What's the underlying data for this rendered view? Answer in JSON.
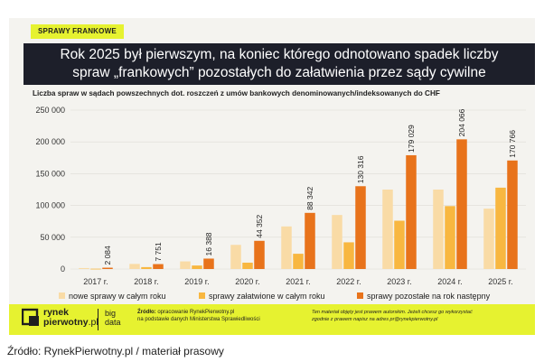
{
  "tag": "SPRAWY FRANKOWE",
  "headline": {
    "line1": "Rok 2025 był pierwszym, na koniec którego odnotowano spadek liczby",
    "line2": "spraw „frankowych” pozostałych do załatwienia przez sądy cywilne"
  },
  "colors": {
    "new": "#f9dba6",
    "done": "#f8b740",
    "remaining": "#e8731b",
    "accent": "#e6f230",
    "dark": "#1d1f2a"
  },
  "chart_data": {
    "type": "bar",
    "title": "Liczba spraw w sądach powszechnych dot. roszczeń z umów bankowych denominowanych/indeksowanych do CHF",
    "categories": [
      "2017 r.",
      "2018 r.",
      "2019 r.",
      "2020 r.",
      "2021 r.",
      "2022 r.",
      "2023 r.",
      "2024 r.",
      "2025 r."
    ],
    "ylim": [
      0,
      250000
    ],
    "yticks": [
      "0",
      "50 000",
      "100 000",
      "150 000",
      "200 000",
      "250 000"
    ],
    "ytick_values": [
      0,
      50000,
      100000,
      150000,
      200000,
      250000
    ],
    "grid": true,
    "legend_position": "bottom",
    "series": [
      {
        "name": "nowe sprawy w całym roku",
        "color": "#f9dba6",
        "values": [
          1500,
          8000,
          12000,
          38000,
          67000,
          85000,
          125000,
          125000,
          95000
        ]
      },
      {
        "name": "sprawy załatwione w całym roku",
        "color": "#f8b740",
        "values": [
          500,
          3000,
          5500,
          10000,
          24000,
          42000,
          76000,
          99000,
          128000
        ]
      },
      {
        "name": "sprawy pozostałe na rok następny",
        "color": "#e8731b",
        "values": [
          2084,
          7751,
          16388,
          44352,
          88342,
          130316,
          179029,
          204066,
          170766
        ],
        "labels": [
          "2 084",
          "7 751",
          "16 388",
          "44 352",
          "88 342",
          "130 316",
          "179 029",
          "204 066",
          "170 766"
        ]
      }
    ]
  },
  "footer": {
    "logo_line1": "rynek",
    "logo_line2": "pierwotny",
    "logo_suffix": ".pl",
    "bigdata1": "big",
    "bigdata2": "data",
    "source_label": "Źródło:",
    "source_line1": " opracowanie RynekPierwotny.pl",
    "source_line2": "na podstawie danych Ministerstwa Sprawiedliwości",
    "note_line1": "Ten materiał objęty jest prawem autorskim. Jeżeli chcesz go wykorzystać",
    "note_line2": "zgodnie z prawem napisz na adres pr@rynekpierwotny.pl"
  },
  "caption": "Źródło: RynekPierwotny.pl / materiał prasowy"
}
